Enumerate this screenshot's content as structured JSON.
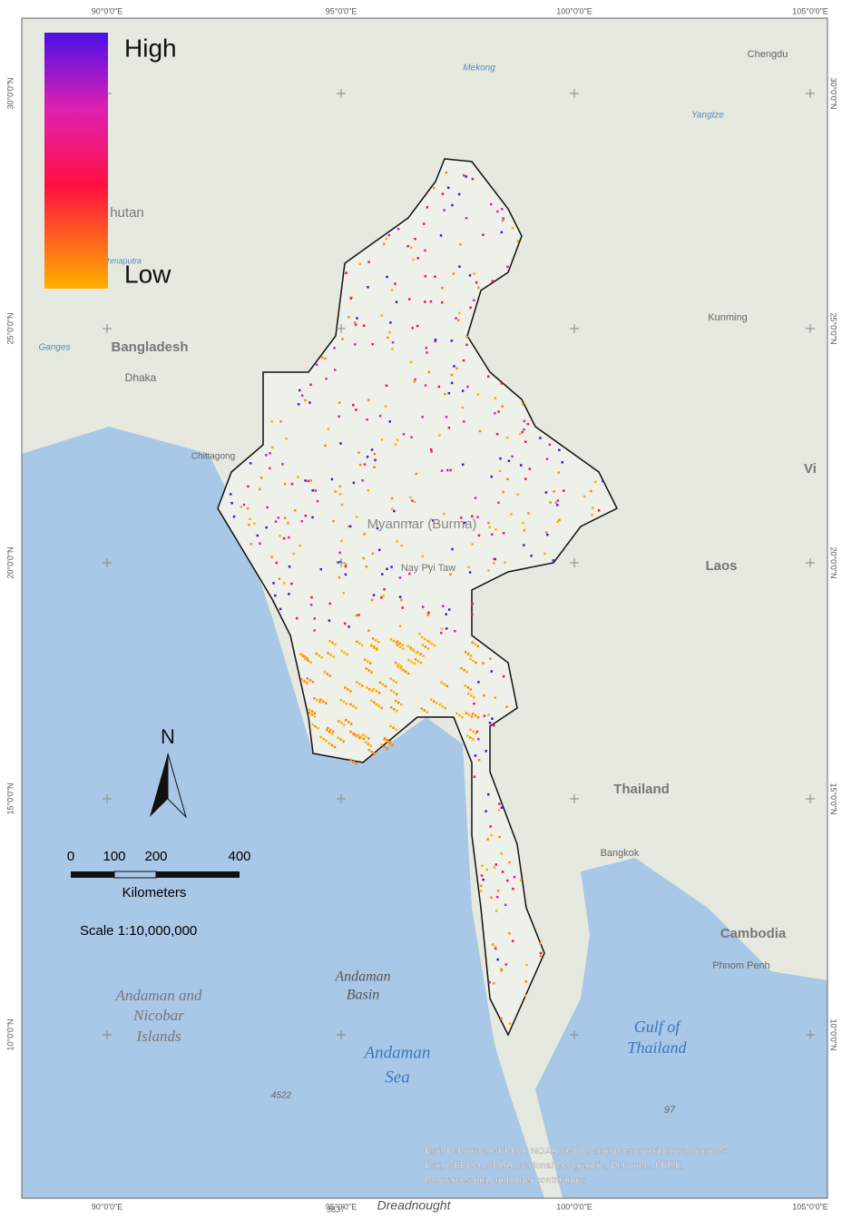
{
  "legend": {
    "high": "High",
    "low": "Low"
  },
  "graticule": {
    "longitudes": [
      "90°0'0\"E",
      "95°0'0\"E",
      "100°0'0\"E",
      "105°0'0\"E"
    ],
    "latitudes": [
      "30°0'0\"N",
      "25°0'0\"N",
      "20°0'0\"N",
      "15°0'0\"N",
      "10°0'0\"N"
    ]
  },
  "places": [
    "Chengdu",
    "Mekong",
    "Yangtze",
    "hutan",
    "Brahmaputra",
    "Bangladesh",
    "Ganges",
    "Dhaka",
    "Chittagong",
    "Kunming",
    "Myanmar (Burma)",
    "Nay Pyi Taw",
    "Laos",
    "Thailand",
    "Bangkok",
    "Cambodia",
    "Phnom Penh",
    "Vi",
    "Andaman and",
    "Nicobar",
    "Islands",
    "Andaman",
    "Basin",
    "Andaman",
    "Sea",
    "Gulf of",
    "Thailand",
    "4522",
    "97",
    "Dreadnought",
    "3837"
  ],
  "north": "N",
  "scale_bar": {
    "ticks": [
      "0",
      "100",
      "200",
      "400"
    ],
    "unit": "Kilometers",
    "scale": "Scale  1:10,000,000"
  },
  "attribution": [
    "Esri, DeLorme, GEBCO, NOAA NGDC, and other contributors, Sources:",
    "Esri, GEBCO, NOAA, National Geographic, DeLorme, HERE,",
    "Geonames.org, and other contributors"
  ]
}
